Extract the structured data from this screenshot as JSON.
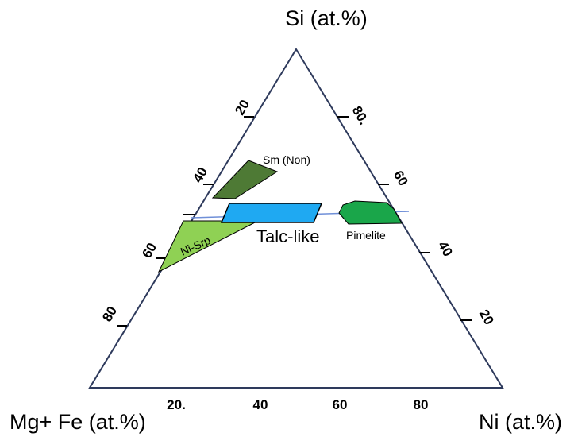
{
  "diagram": {
    "vertices": {
      "top": "Si (at.%)",
      "left": "Mg+ Fe (at.%)",
      "right": "Ni (at.%)"
    },
    "ticks": {
      "left_edge": [
        "20",
        "40",
        "60",
        "80"
      ],
      "right_edge": [
        "80.",
        "60",
        "40",
        "20"
      ],
      "bottom_edge": [
        "20.",
        "40",
        "60",
        "80"
      ]
    },
    "fields": [
      {
        "id": "sm-non",
        "label": "Sm (Non)",
        "color": "#4e7a35"
      },
      {
        "id": "ni-srp",
        "label": "Ni-Srp",
        "color": "#8fd154"
      },
      {
        "id": "talc-like",
        "label": "Talc-like",
        "color": "#1fa9f2"
      },
      {
        "id": "pimelite",
        "label": "Pimelite",
        "color": "#1aa64a"
      }
    ],
    "colors": {
      "triangle_outline": "#2e3a5c",
      "tie_line": "#6f8fd8"
    }
  }
}
